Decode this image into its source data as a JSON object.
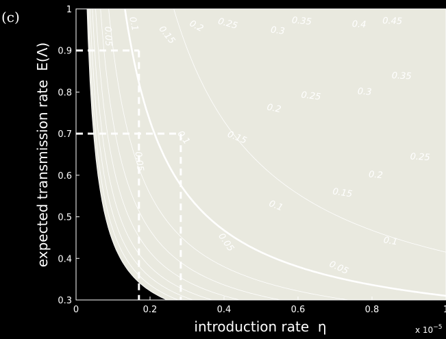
{
  "chart_data": {
    "type": "contour",
    "panel_label": "(c)",
    "xlabel": "introduction rate  η",
    "ylabel": "expected transmission rate  E(Λ)",
    "x_exponent_label": "x 10",
    "x_exponent_power": "−5",
    "xlim": [
      0,
      1
    ],
    "ylim": [
      0.3,
      1
    ],
    "x_ticks": [
      0,
      0.2,
      0.4,
      0.6,
      0.8,
      1
    ],
    "x_tick_labels": [
      "0",
      "0.2",
      "0.4",
      "0.6",
      "0.8",
      "1"
    ],
    "y_ticks": [
      0.3,
      0.4,
      0.5,
      0.6,
      0.7,
      0.8,
      0.9,
      1
    ],
    "y_tick_labels": [
      "0.3",
      "0.4",
      "0.5",
      "0.6",
      "0.7",
      "0.8",
      "0.9",
      "1"
    ],
    "grid": false,
    "contour_levels": [
      0.05,
      0.1,
      0.15,
      0.2,
      0.25,
      0.3,
      0.35,
      0.4,
      0.45
    ],
    "highlighted_level": 0.1,
    "fill_colors": [
      "#000000",
      "#241414",
      "#3a2424",
      "#533636",
      "#6e5049",
      "#8a7464",
      "#a4977f",
      "#bbb69c",
      "#d2d1bc",
      "#e9e9df"
    ],
    "contour_labels": [
      {
        "level": 0.05,
        "text": "0.05",
        "x": 0.086,
        "y": 0.934
      },
      {
        "level": 0.05,
        "text": "0.05",
        "x": 0.17,
        "y": 0.633
      },
      {
        "level": 0.05,
        "text": "0.05",
        "x": 0.405,
        "y": 0.438
      },
      {
        "level": 0.05,
        "text": "0.05",
        "x": 0.71,
        "y": 0.377
      },
      {
        "level": 0.1,
        "text": "0.1",
        "x": 0.155,
        "y": 0.964
      },
      {
        "level": 0.1,
        "text": "0.1",
        "x": 0.29,
        "y": 0.69
      },
      {
        "level": 0.1,
        "text": "0.1",
        "x": 0.54,
        "y": 0.526
      },
      {
        "level": 0.1,
        "text": "0.1",
        "x": 0.85,
        "y": 0.441
      },
      {
        "level": 0.15,
        "text": "0.15",
        "x": 0.245,
        "y": 0.937
      },
      {
        "level": 0.15,
        "text": "0.15",
        "x": 0.435,
        "y": 0.69
      },
      {
        "level": 0.15,
        "text": "0.15",
        "x": 0.72,
        "y": 0.557
      },
      {
        "level": 0.2,
        "text": "0.2",
        "x": 0.325,
        "y": 0.958
      },
      {
        "level": 0.2,
        "text": "0.2",
        "x": 0.535,
        "y": 0.76
      },
      {
        "level": 0.2,
        "text": "0.2",
        "x": 0.81,
        "y": 0.6
      },
      {
        "level": 0.25,
        "text": "0.25",
        "x": 0.41,
        "y": 0.964
      },
      {
        "level": 0.25,
        "text": "0.25",
        "x": 0.635,
        "y": 0.79
      },
      {
        "level": 0.25,
        "text": "0.25",
        "x": 0.93,
        "y": 0.643
      },
      {
        "level": 0.3,
        "text": "0.3",
        "x": 0.545,
        "y": 0.947
      },
      {
        "level": 0.3,
        "text": "0.3",
        "x": 0.78,
        "y": 0.8
      },
      {
        "level": 0.35,
        "text": "0.35",
        "x": 0.61,
        "y": 0.97
      },
      {
        "level": 0.35,
        "text": "0.35",
        "x": 0.88,
        "y": 0.838
      },
      {
        "level": 0.4,
        "text": "0.4",
        "x": 0.765,
        "y": 0.962
      },
      {
        "level": 0.45,
        "text": "0.45",
        "x": 0.855,
        "y": 0.97
      }
    ],
    "reference_lines": [
      {
        "x": 0.17,
        "y": 0.9
      },
      {
        "x": 0.283,
        "y": 0.7
      }
    ]
  }
}
